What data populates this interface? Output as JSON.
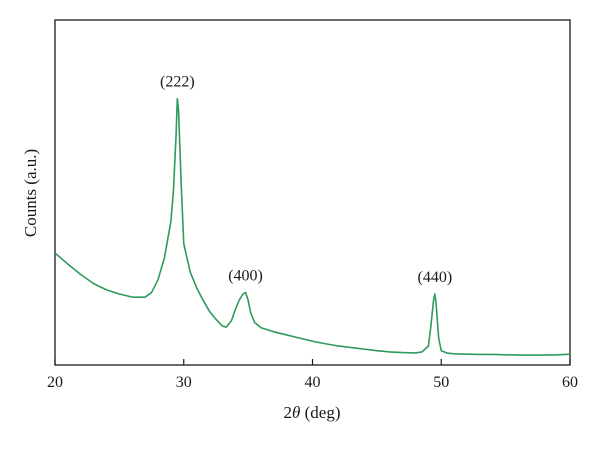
{
  "chart_data": {
    "type": "line",
    "title": "",
    "xlabel_prefix": "2",
    "xlabel_symbol": "θ",
    "xlabel_suffix": " (deg)",
    "ylabel": "Counts (a.u.)",
    "xlim": [
      20,
      60
    ],
    "ylim": [
      0,
      1
    ],
    "xticks": [
      "20",
      "30",
      "40",
      "50",
      "60"
    ],
    "yticks": [],
    "grid": false,
    "legend": "none",
    "line_color": "#2e9a5c",
    "series": [
      {
        "x": [
          20,
          21,
          22,
          23,
          24,
          25,
          26,
          27,
          27.5,
          28,
          28.5,
          29,
          29.2,
          29.4,
          29.5,
          29.6,
          29.8,
          30,
          30.5,
          31,
          31.5,
          32,
          32.5,
          33,
          33.3,
          33.7,
          34,
          34.3,
          34.6,
          34.8,
          35,
          35.2,
          35.5,
          36,
          37,
          38,
          39,
          40,
          41,
          42,
          43,
          44,
          45,
          46,
          47,
          48,
          48.5,
          49,
          49.2,
          49.4,
          49.5,
          49.6,
          49.8,
          50,
          50.5,
          51,
          52,
          53,
          54,
          55,
          56,
          57,
          58,
          59,
          60
        ],
        "y": [
          0.33,
          0.295,
          0.262,
          0.233,
          0.213,
          0.2,
          0.19,
          0.19,
          0.205,
          0.245,
          0.315,
          0.43,
          0.53,
          0.7,
          0.82,
          0.78,
          0.55,
          0.36,
          0.27,
          0.22,
          0.18,
          0.145,
          0.12,
          0.098,
          0.095,
          0.115,
          0.15,
          0.18,
          0.2,
          0.205,
          0.18,
          0.14,
          0.11,
          0.093,
          0.08,
          0.07,
          0.06,
          0.05,
          0.042,
          0.035,
          0.03,
          0.025,
          0.02,
          0.016,
          0.014,
          0.013,
          0.016,
          0.035,
          0.1,
          0.18,
          0.2,
          0.17,
          0.06,
          0.02,
          0.012,
          0.01,
          0.009,
          0.008,
          0.008,
          0.007,
          0.006,
          0.006,
          0.006,
          0.007,
          0.009
        ]
      }
    ],
    "annotations": [
      {
        "text": "(222)",
        "x": 29.5,
        "y": 0.82
      },
      {
        "text": "(400)",
        "x": 34.8,
        "y": 0.205
      },
      {
        "text": "(440)",
        "x": 49.5,
        "y": 0.2
      }
    ]
  }
}
